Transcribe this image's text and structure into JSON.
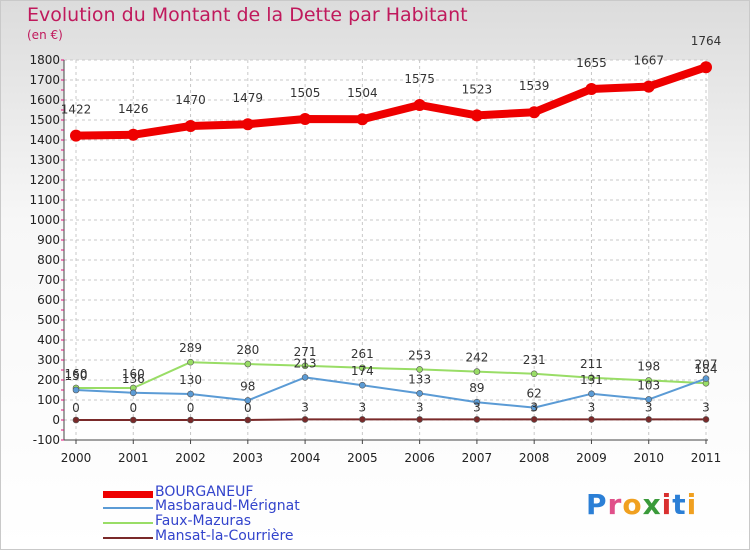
{
  "title": "Evolution du Montant de la Dette par Habitant",
  "unit": "(en €)",
  "logo": "Proxiti",
  "colors": {
    "title": "#c0195c",
    "legend_text": "#3344cc",
    "grid": "#c8c8c8",
    "tick_marks": "#e0107a"
  },
  "chart_data": {
    "type": "line",
    "title": "Evolution du Montant de la Dette par Habitant",
    "ylabel": "(en €)",
    "xlabel": "",
    "x": [
      "2000",
      "2001",
      "2002",
      "2003",
      "2004",
      "2005",
      "2006",
      "2007",
      "2008",
      "2009",
      "2010",
      "2011"
    ],
    "ylim": [
      -100,
      1800
    ],
    "yticks": [
      -100,
      0,
      100,
      200,
      300,
      400,
      500,
      600,
      700,
      800,
      900,
      1000,
      1100,
      1200,
      1300,
      1400,
      1500,
      1600,
      1700,
      1800
    ],
    "grid": true,
    "legend": "bottom-left",
    "series": [
      {
        "name": "BOURGANEUF",
        "color": "#ee0000",
        "values": [
          1422,
          1426,
          1470,
          1479,
          1505,
          1504,
          1575,
          1523,
          1539,
          1655,
          1667,
          1764
        ]
      },
      {
        "name": "Masbaraud-Mérignat",
        "color": "#5b9bd5",
        "values": [
          150,
          136,
          130,
          98,
          213,
          174,
          133,
          89,
          62,
          131,
          103,
          207
        ]
      },
      {
        "name": "Faux-Mazuras",
        "color": "#99dd66",
        "values": [
          160,
          160,
          289,
          280,
          271,
          261,
          253,
          242,
          231,
          211,
          198,
          184
        ]
      },
      {
        "name": "Mansat-la-Courrière",
        "color": "#7a2a2a",
        "values": [
          0,
          0,
          0,
          0,
          3,
          3,
          3,
          3,
          3,
          3,
          3,
          3
        ]
      }
    ]
  }
}
